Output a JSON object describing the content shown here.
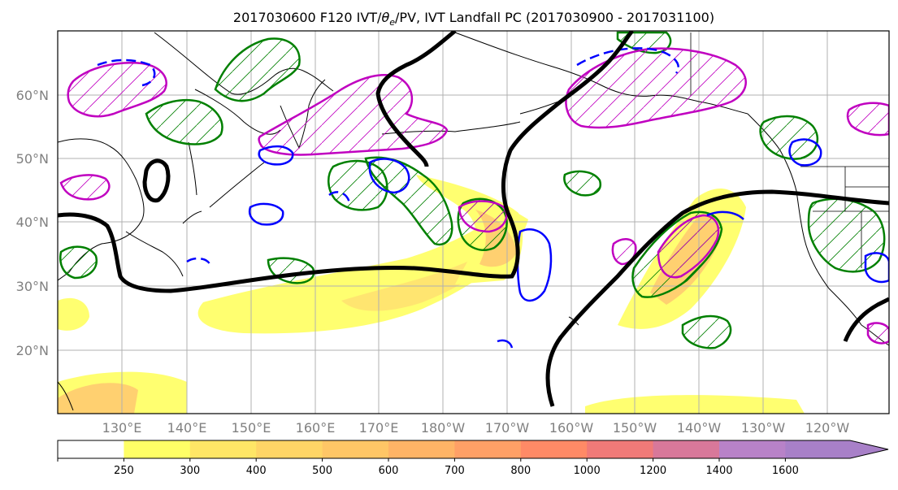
{
  "figure": {
    "title_prefix": "2017030600 F120 IVT/",
    "title_theta": "θ",
    "title_sub": "e",
    "title_suffix": "/PV, IVT Landfall PC (2017030900 - 2017031100)"
  },
  "map": {
    "projection": "PlateCarree",
    "lon_range_deg_east": [
      120,
      250
    ],
    "lat_range": [
      10,
      70
    ],
    "lat_ticks": [
      "60°N",
      "50°N",
      "40°N",
      "30°N",
      "20°N"
    ],
    "lon_ticks": [
      "130°E",
      "140°E",
      "150°E",
      "160°E",
      "170°E",
      "180°W",
      "170°W",
      "160°W",
      "150°W",
      "140°W",
      "130°W",
      "120°W"
    ],
    "gridlines": true,
    "contour_colors": {
      "height_contour": "#000000",
      "green_contours": "#008000",
      "magenta_contours": "#c000c0",
      "blue_contours": "#0000ff"
    }
  },
  "colorbar": {
    "labels": [
      "250",
      "300",
      "400",
      "500",
      "600",
      "700",
      "800",
      "1000",
      "1200",
      "1400",
      "1600"
    ],
    "colors": [
      "#ffffff",
      "#ffff66",
      "#ffe666",
      "#ffd566",
      "#ffc666",
      "#ffb466",
      "#ffa066",
      "#ff8a66",
      "#f07a78",
      "#d8789a",
      "#b882c8",
      "#a880c8"
    ],
    "extend": "max"
  }
}
